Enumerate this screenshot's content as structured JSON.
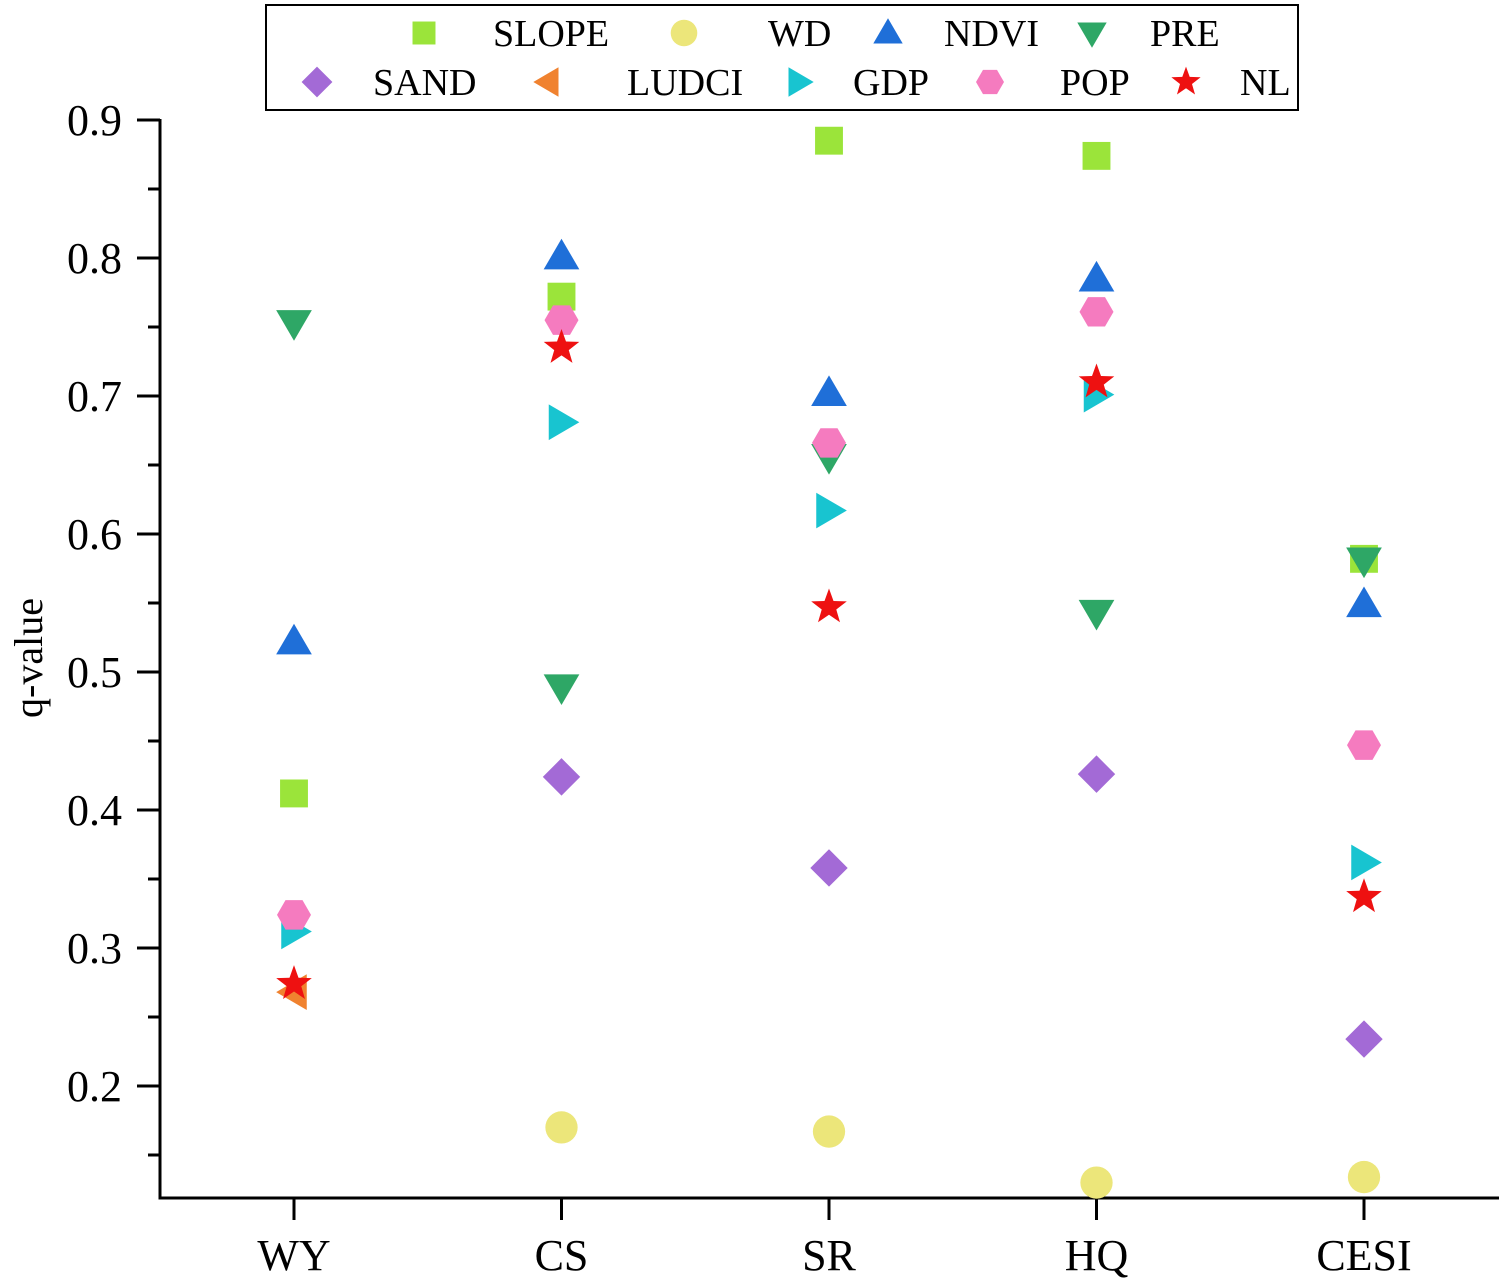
{
  "chart_data": {
    "type": "scatter",
    "title": "",
    "xlabel": "",
    "ylabel": "q-value",
    "categories": [
      "WY",
      "CS",
      "SR",
      "HQ",
      "CESI"
    ],
    "ylim": [
      0.13,
      0.9
    ],
    "yticks": [
      "0.9",
      "0.8",
      "0.7",
      "0.6",
      "0.5",
      "0.4",
      "0.3",
      "0.2"
    ],
    "ytick_values": [
      0.9,
      0.8,
      0.7,
      0.6,
      0.5,
      0.4,
      0.3,
      0.2
    ],
    "grid": false,
    "legend_position": "top",
    "series": [
      {
        "name": "SLOPE",
        "marker": "square",
        "color": "#9be43a",
        "values": [
          0.412,
          0.772,
          0.885,
          0.874,
          0.582
        ]
      },
      {
        "name": "WD",
        "marker": "circle",
        "color": "#ece67a",
        "values": [
          null,
          0.17,
          0.167,
          0.13,
          0.134
        ]
      },
      {
        "name": "NDVI",
        "marker": "triangle-up",
        "color": "#1f6fd8",
        "values": [
          0.522,
          0.801,
          0.702,
          0.785,
          0.549
        ]
      },
      {
        "name": "PRE",
        "marker": "triangle-down",
        "color": "#2ea766",
        "values": [
          0.753,
          0.489,
          0.656,
          0.543,
          0.581
        ]
      },
      {
        "name": "SAND",
        "marker": "diamond",
        "color": "#a36ad6",
        "values": [
          null,
          0.424,
          0.358,
          0.426,
          0.234
        ]
      },
      {
        "name": "LUDCI",
        "marker": "triangle-left",
        "color": "#f0822f",
        "values": [
          0.268,
          null,
          null,
          null,
          null
        ]
      },
      {
        "name": "GDP",
        "marker": "triangle-right",
        "color": "#18c4d0",
        "values": [
          0.312,
          0.681,
          0.617,
          0.701,
          0.362
        ]
      },
      {
        "name": "POP",
        "marker": "hexagon",
        "color": "#f57bbf",
        "values": [
          0.324,
          0.755,
          0.666,
          0.761,
          0.447
        ]
      },
      {
        "name": "NL",
        "marker": "star",
        "color": "#ee1111",
        "values": [
          0.274,
          0.735,
          0.547,
          0.71,
          0.337
        ]
      }
    ]
  }
}
